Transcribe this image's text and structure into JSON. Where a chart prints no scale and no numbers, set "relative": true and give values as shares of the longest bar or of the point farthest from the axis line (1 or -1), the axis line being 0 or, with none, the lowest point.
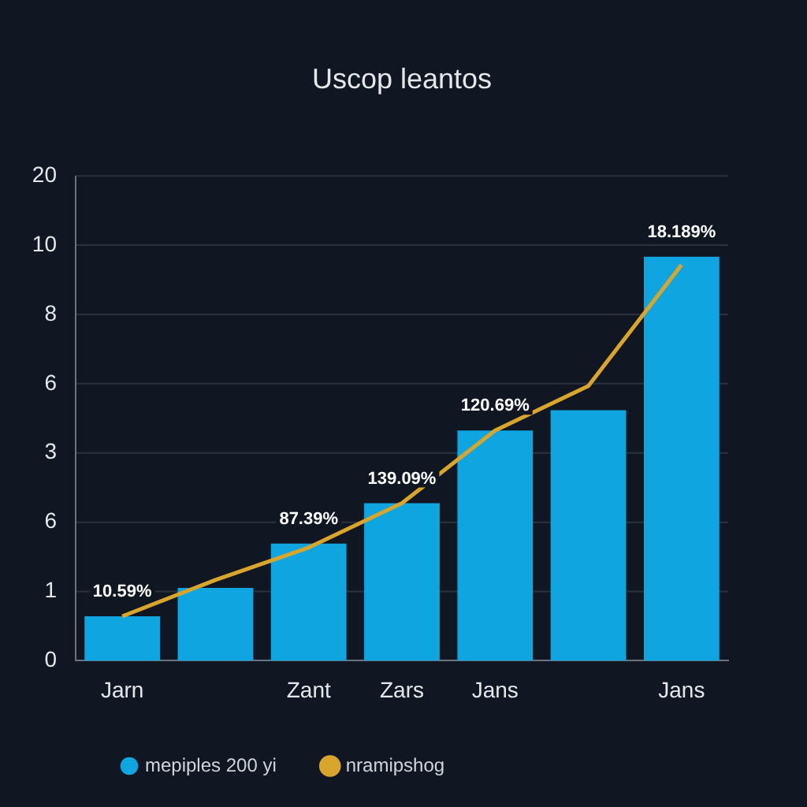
{
  "chart_data": {
    "type": "bar",
    "title": "Uscop leantos",
    "relative": true,
    "categories": [
      "Jarn",
      null,
      "Zant",
      "Zars",
      "Jans",
      null,
      "Jans"
    ],
    "annotations": [
      "0",
      "1",
      "6",
      "3",
      "6",
      "8",
      "10",
      "20",
      {
        "text": "10.59%",
        "x": "Jarn",
        "y": 0.11
      },
      {
        "text": "87.39%",
        "x": "Zant",
        "y": 0.29
      },
      {
        "text": "139.09%",
        "x": "Zars",
        "y": 0.39
      },
      {
        "text": "120.69%",
        "x": "Jans",
        "y": 0.57
      },
      {
        "text": "18.189%",
        "y": 1.0
      }
    ],
    "grid": "y",
    "legend": "bottom",
    "series": [
      {
        "name": "mepiples 200 yi",
        "color": "#0ea5e0",
        "values": [
          0.11,
          0.18,
          0.29,
          0.39,
          0.57,
          0.62,
          1.0
        ]
      },
      {
        "name": "nramipshog",
        "type": "line",
        "color": "#d9a52c",
        "marker": "none",
        "line_style": "solid",
        "values": [
          0.11,
          0.2,
          0.28,
          0.39,
          0.57,
          0.68,
          0.98
        ]
      }
    ]
  }
}
